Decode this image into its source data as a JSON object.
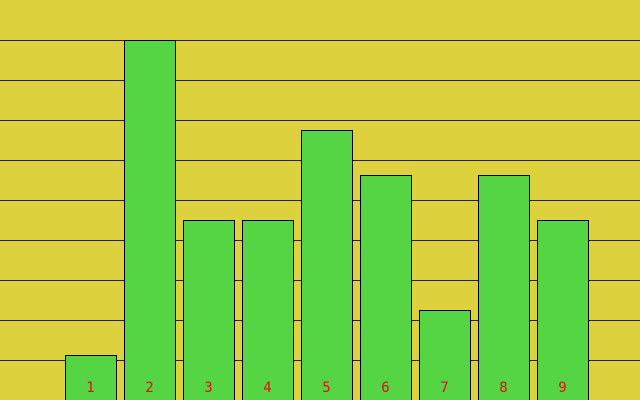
{
  "chart_data": {
    "type": "bar",
    "categories": [
      "1",
      "2",
      "3",
      "4",
      "5",
      "6",
      "7",
      "8",
      "9"
    ],
    "values": [
      1.125,
      9,
      4.5,
      4.5,
      6.75,
      5.625,
      2.25,
      5.625,
      4.5
    ],
    "color": "#55d444",
    "label_color": "#e01010",
    "background": "#ddd23d",
    "ylim": [
      0,
      10
    ],
    "yticks": [
      1,
      2,
      3,
      4,
      5,
      6,
      7,
      8,
      9
    ],
    "grid": true
  }
}
